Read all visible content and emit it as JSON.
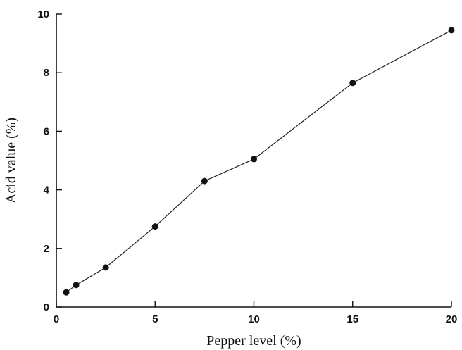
{
  "chart_data": {
    "type": "line",
    "title": "",
    "xlabel": "Pepper level (%)",
    "ylabel": "Acid value (%)",
    "xlim": [
      0,
      20
    ],
    "ylim": [
      0,
      10
    ],
    "xticks": [
      0,
      5,
      10,
      15,
      20
    ],
    "yticks": [
      0,
      2,
      4,
      6,
      8,
      10
    ],
    "xtick_labels": [
      "0",
      "5",
      "10",
      "15",
      "20"
    ],
    "ytick_labels": [
      "0",
      "2",
      "4",
      "6",
      "8",
      "10"
    ],
    "grid": false,
    "series": [
      {
        "x": [
          0.5,
          1,
          2.5,
          5,
          7.5,
          10,
          15,
          20
        ],
        "y": [
          0.5,
          0.75,
          1.35,
          2.75,
          4.3,
          5.05,
          7.65,
          9.45
        ]
      }
    ]
  }
}
